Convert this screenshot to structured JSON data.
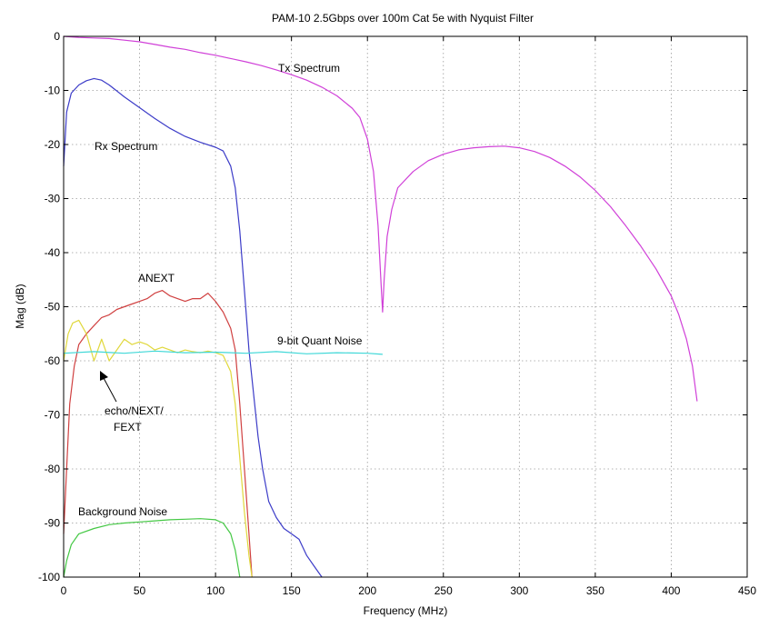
{
  "chart_data": {
    "type": "line",
    "title": "PAM-10 2.5Gbps over 100m Cat 5e with Nyquist Filter",
    "xlabel": "Frequency (MHz)",
    "ylabel": "Mag (dB)",
    "xlim": [
      0,
      450
    ],
    "ylim": [
      -100,
      0
    ],
    "xticks": [
      0,
      50,
      100,
      150,
      200,
      250,
      300,
      350,
      400,
      450
    ],
    "yticks": [
      0,
      -10,
      -20,
      -30,
      -40,
      -50,
      -60,
      -70,
      -80,
      -90,
      -100
    ],
    "grid": true,
    "series": [
      {
        "name": "Tx Spectrum",
        "color": "#d040d8",
        "points": [
          [
            0,
            0
          ],
          [
            10,
            -0.2
          ],
          [
            20,
            -0.3
          ],
          [
            30,
            -0.4
          ],
          [
            40,
            -0.7
          ],
          [
            50,
            -1
          ],
          [
            60,
            -1.5
          ],
          [
            70,
            -2
          ],
          [
            80,
            -2.4
          ],
          [
            90,
            -3
          ],
          [
            100,
            -3.5
          ],
          [
            110,
            -4.1
          ],
          [
            120,
            -4.7
          ],
          [
            130,
            -5.4
          ],
          [
            140,
            -6.2
          ],
          [
            150,
            -7.1
          ],
          [
            160,
            -8.1
          ],
          [
            170,
            -9.4
          ],
          [
            180,
            -11
          ],
          [
            190,
            -13.3
          ],
          [
            195,
            -15
          ],
          [
            200,
            -19
          ],
          [
            204,
            -25
          ],
          [
            207,
            -35
          ],
          [
            209,
            -46
          ],
          [
            210,
            -51
          ],
          [
            211,
            -45
          ],
          [
            213,
            -37
          ],
          [
            216,
            -32
          ],
          [
            220,
            -28
          ],
          [
            230,
            -25
          ],
          [
            240,
            -23
          ],
          [
            250,
            -21.8
          ],
          [
            260,
            -21
          ],
          [
            270,
            -20.6
          ],
          [
            280,
            -20.4
          ],
          [
            290,
            -20.3
          ],
          [
            300,
            -20.6
          ],
          [
            310,
            -21.3
          ],
          [
            320,
            -22.4
          ],
          [
            330,
            -24
          ],
          [
            340,
            -26
          ],
          [
            350,
            -28.5
          ],
          [
            360,
            -31.5
          ],
          [
            370,
            -35
          ],
          [
            380,
            -38.8
          ],
          [
            390,
            -43
          ],
          [
            400,
            -48
          ],
          [
            405,
            -51.5
          ],
          [
            410,
            -56
          ],
          [
            414,
            -61
          ],
          [
            417,
            -67.5
          ]
        ]
      },
      {
        "name": "Rx Spectrum",
        "color": "#3c3cc8",
        "points": [
          [
            0,
            -24
          ],
          [
            2,
            -14
          ],
          [
            5,
            -10.5
          ],
          [
            10,
            -9
          ],
          [
            15,
            -8.2
          ],
          [
            20,
            -7.8
          ],
          [
            25,
            -8.1
          ],
          [
            30,
            -9
          ],
          [
            40,
            -11.2
          ],
          [
            50,
            -13.2
          ],
          [
            60,
            -15.2
          ],
          [
            70,
            -17
          ],
          [
            80,
            -18.5
          ],
          [
            90,
            -19.6
          ],
          [
            100,
            -20.5
          ],
          [
            105,
            -21.2
          ],
          [
            110,
            -24
          ],
          [
            113,
            -28
          ],
          [
            116,
            -36
          ],
          [
            119,
            -47
          ],
          [
            122,
            -58
          ],
          [
            125,
            -66
          ],
          [
            128,
            -74
          ],
          [
            131,
            -80
          ],
          [
            135,
            -86
          ],
          [
            140,
            -89
          ],
          [
            145,
            -91
          ],
          [
            150,
            -92
          ],
          [
            155,
            -93
          ],
          [
            160,
            -96
          ],
          [
            165,
            -98
          ],
          [
            170,
            -100
          ]
        ]
      },
      {
        "name": "ANEXT",
        "color": "#d04040",
        "points": [
          [
            0,
            -92
          ],
          [
            2,
            -80
          ],
          [
            4,
            -68
          ],
          [
            7,
            -61
          ],
          [
            10,
            -57
          ],
          [
            15,
            -55
          ],
          [
            20,
            -53.5
          ],
          [
            25,
            -52
          ],
          [
            30,
            -51.5
          ],
          [
            35,
            -50.5
          ],
          [
            40,
            -50
          ],
          [
            45,
            -49.5
          ],
          [
            50,
            -49
          ],
          [
            55,
            -48.5
          ],
          [
            60,
            -47.5
          ],
          [
            65,
            -47
          ],
          [
            70,
            -48
          ],
          [
            75,
            -48.5
          ],
          [
            80,
            -49
          ],
          [
            85,
            -48.5
          ],
          [
            90,
            -48.5
          ],
          [
            95,
            -47.5
          ],
          [
            100,
            -49
          ],
          [
            105,
            -51
          ],
          [
            110,
            -54
          ],
          [
            113,
            -58
          ],
          [
            116,
            -68
          ],
          [
            119,
            -80
          ],
          [
            122,
            -92
          ],
          [
            124,
            -100
          ]
        ]
      },
      {
        "name": "echo/NEXT/FEXT",
        "color": "#e0d83c",
        "points": [
          [
            0,
            -60
          ],
          [
            3,
            -55
          ],
          [
            6,
            -53
          ],
          [
            10,
            -52.5
          ],
          [
            15,
            -55
          ],
          [
            20,
            -60
          ],
          [
            25,
            -56
          ],
          [
            30,
            -60
          ],
          [
            35,
            -58
          ],
          [
            40,
            -56
          ],
          [
            45,
            -57
          ],
          [
            50,
            -56.5
          ],
          [
            55,
            -57
          ],
          [
            60,
            -58
          ],
          [
            65,
            -57.5
          ],
          [
            70,
            -58
          ],
          [
            75,
            -58.5
          ],
          [
            80,
            -58
          ],
          [
            85,
            -58.3
          ],
          [
            90,
            -58.5
          ],
          [
            95,
            -58.2
          ],
          [
            100,
            -58.5
          ],
          [
            105,
            -59
          ],
          [
            110,
            -62
          ],
          [
            113,
            -68
          ],
          [
            116,
            -78
          ],
          [
            119,
            -88
          ],
          [
            122,
            -96
          ],
          [
            124,
            -100
          ]
        ]
      },
      {
        "name": "9-bit Quant Noise",
        "color": "#40d8d8",
        "points": [
          [
            0,
            -58.6
          ],
          [
            20,
            -58.3
          ],
          [
            40,
            -58.6
          ],
          [
            60,
            -58.2
          ],
          [
            80,
            -58.5
          ],
          [
            100,
            -58.4
          ],
          [
            120,
            -58.6
          ],
          [
            140,
            -58.3
          ],
          [
            160,
            -58.7
          ],
          [
            180,
            -58.5
          ],
          [
            200,
            -58.6
          ],
          [
            210,
            -58.8
          ]
        ]
      },
      {
        "name": "Background Noise",
        "color": "#44c844",
        "points": [
          [
            0,
            -100
          ],
          [
            2,
            -97
          ],
          [
            5,
            -94
          ],
          [
            10,
            -92
          ],
          [
            20,
            -91
          ],
          [
            30,
            -90.3
          ],
          [
            40,
            -90
          ],
          [
            50,
            -89.8
          ],
          [
            60,
            -89.6
          ],
          [
            70,
            -89.4
          ],
          [
            80,
            -89.3
          ],
          [
            90,
            -89.2
          ],
          [
            100,
            -89.4
          ],
          [
            105,
            -90
          ],
          [
            110,
            -92
          ],
          [
            113,
            -95
          ],
          [
            116,
            -100
          ]
        ]
      }
    ],
    "annotations": {
      "tx_spectrum": "Tx Spectrum",
      "rx_spectrum": "Rx Spectrum",
      "anext": "ANEXT",
      "quant_noise": "9-bit Quant Noise",
      "echo_line1": "echo/NEXT/",
      "echo_line2": "FEXT",
      "background_noise": "Background Noise"
    }
  }
}
